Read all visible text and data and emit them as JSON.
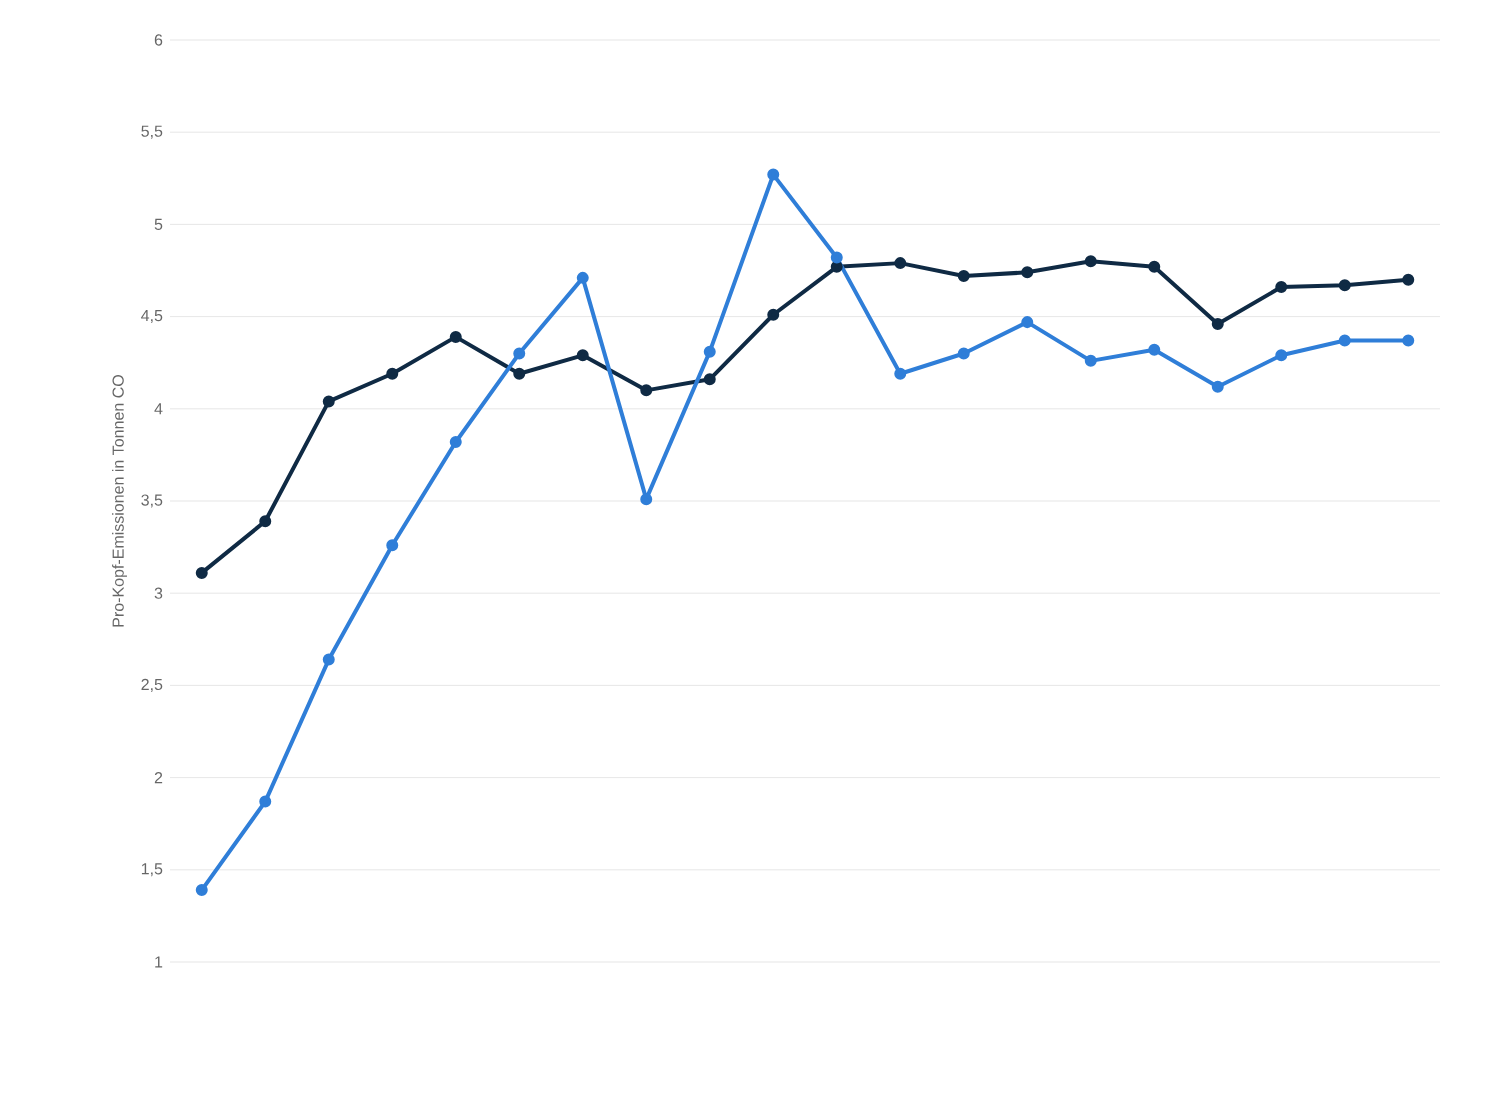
{
  "chart_data": {
    "type": "line",
    "ylabel": "Pro-Kopf-Emissionen in Tonnen CO",
    "categories": [
      null,
      null,
      null,
      null,
      null,
      null,
      null,
      null,
      null,
      null,
      null,
      null,
      null,
      null,
      null,
      null,
      null,
      null,
      null,
      null
    ],
    "series": [
      {
        "color": "#0f2a44",
        "values": [
          3.11,
          3.39,
          4.04,
          4.19,
          4.39,
          4.19,
          4.29,
          4.1,
          4.16,
          4.51,
          4.77,
          4.79,
          4.72,
          4.74,
          4.8,
          4.77,
          4.46,
          4.66,
          4.67,
          4.7
        ]
      },
      {
        "color": "#2f7ed8",
        "values": [
          1.39,
          1.87,
          2.64,
          3.26,
          3.82,
          4.3,
          4.71,
          3.51,
          4.31,
          5.27,
          4.82,
          4.19,
          4.3,
          4.47,
          4.26,
          4.32,
          4.12,
          4.29,
          4.37,
          4.37
        ]
      }
    ],
    "ylim": [
      1,
      6
    ],
    "yticks": [
      1,
      {
        "value": 1.5,
        "label": "1,5"
      },
      2,
      {
        "value": 2.5,
        "label": "2,5"
      },
      3,
      {
        "value": 3.5,
        "label": "3,5"
      },
      4,
      {
        "value": 4.5,
        "label": "4,5"
      },
      5,
      {
        "value": 5.5,
        "label": "5,5"
      },
      6
    ],
    "grid": "y",
    "marker": "circle",
    "line_style": "solid",
    "tick_labels": "y"
  }
}
